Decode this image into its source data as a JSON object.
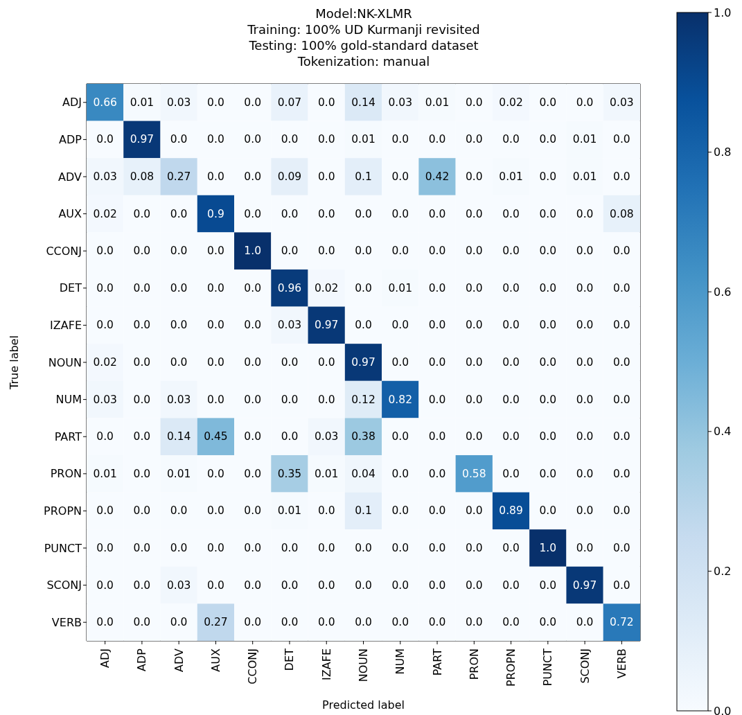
{
  "chart_data": {
    "type": "heatmap",
    "title": "Model:NK-XLMR\nTraining: 100% UD Kurmanji revisited\nTesting: 100% gold-standard dataset\nTokenization: manual",
    "xlabel": "Predicted label",
    "ylabel": "True label",
    "categories": [
      "ADJ",
      "ADP",
      "ADV",
      "AUX",
      "CCONJ",
      "DET",
      "IZAFE",
      "NOUN",
      "NUM",
      "PART",
      "PRON",
      "PROPN",
      "PUNCT",
      "SCONJ",
      "VERB"
    ],
    "y_categories": [
      "ADJ",
      "ADP",
      "ADV",
      "AUX",
      "CCONJ",
      "DET",
      "IZAFE",
      "NOUN",
      "NUM",
      "PART",
      "PRON",
      "PROPN",
      "PUNCT",
      "SCONJ",
      "VERB"
    ],
    "cells": [
      [
        0.66,
        0.01,
        0.03,
        0,
        0,
        0.07,
        0,
        0.14,
        0.03,
        0.01,
        0,
        0.02,
        0,
        0,
        0.03
      ],
      [
        0,
        0.97,
        0,
        0,
        0,
        0,
        0,
        0.01,
        0,
        0,
        0,
        0,
        0,
        0.01,
        0
      ],
      [
        0.03,
        0.08,
        0.27,
        0,
        0,
        0.09,
        0,
        0.1,
        0,
        0.42,
        0,
        0.01,
        0,
        0.01,
        0
      ],
      [
        0.02,
        0,
        0,
        0.9,
        0,
        0,
        0,
        0,
        0,
        0,
        0,
        0,
        0,
        0,
        0.08
      ],
      [
        0,
        0,
        0,
        0,
        1,
        0,
        0,
        0,
        0,
        0,
        0,
        0,
        0,
        0,
        0
      ],
      [
        0,
        0,
        0,
        0,
        0,
        0.96,
        0.02,
        0,
        0.01,
        0,
        0,
        0,
        0,
        0,
        0
      ],
      [
        0,
        0,
        0,
        0,
        0,
        0.03,
        0.97,
        0,
        0,
        0,
        0,
        0,
        0,
        0,
        0
      ],
      [
        0.02,
        0,
        0,
        0,
        0,
        0,
        0,
        0.97,
        0,
        0,
        0,
        0,
        0,
        0,
        0
      ],
      [
        0.03,
        0,
        0.03,
        0,
        0,
        0,
        0,
        0.12,
        0.82,
        0,
        0,
        0,
        0,
        0,
        0
      ],
      [
        0,
        0,
        0.14,
        0.45,
        0,
        0,
        0.03,
        0.38,
        0,
        0,
        0,
        0,
        0,
        0,
        0
      ],
      [
        0.01,
        0,
        0.01,
        0,
        0,
        0.35,
        0.01,
        0.04,
        0,
        0,
        0.58,
        0,
        0,
        0,
        0
      ],
      [
        0,
        0,
        0,
        0,
        0,
        0.01,
        0,
        0.1,
        0,
        0,
        0,
        0.89,
        0,
        0,
        0
      ],
      [
        0,
        0,
        0,
        0,
        0,
        0,
        0,
        0,
        0,
        0,
        0,
        0,
        1,
        0,
        0
      ],
      [
        0,
        0,
        0.03,
        0,
        0,
        0,
        0,
        0,
        0,
        0,
        0,
        0,
        0,
        0.97,
        0
      ],
      [
        0,
        0,
        0,
        0.27,
        0,
        0,
        0,
        0,
        0,
        0,
        0,
        0,
        0,
        0,
        0.72
      ]
    ],
    "cell_labels": [
      [
        "0.66",
        "0.01",
        "0.03",
        "0.0",
        "0.0",
        "0.07",
        "0.0",
        "0.14",
        "0.03",
        "0.01",
        "0.0",
        "0.02",
        "0.0",
        "0.0",
        "0.03"
      ],
      [
        "0.0",
        "0.97",
        "0.0",
        "0.0",
        "0.0",
        "0.0",
        "0.0",
        "0.01",
        "0.0",
        "0.0",
        "0.0",
        "0.0",
        "0.0",
        "0.01",
        "0.0"
      ],
      [
        "0.03",
        "0.08",
        "0.27",
        "0.0",
        "0.0",
        "0.09",
        "0.0",
        "0.1",
        "0.0",
        "0.42",
        "0.0",
        "0.01",
        "0.0",
        "0.01",
        "0.0"
      ],
      [
        "0.02",
        "0.0",
        "0.0",
        "0.9",
        "0.0",
        "0.0",
        "0.0",
        "0.0",
        "0.0",
        "0.0",
        "0.0",
        "0.0",
        "0.0",
        "0.0",
        "0.08"
      ],
      [
        "0.0",
        "0.0",
        "0.0",
        "0.0",
        "1.0",
        "0.0",
        "0.0",
        "0.0",
        "0.0",
        "0.0",
        "0.0",
        "0.0",
        "0.0",
        "0.0",
        "0.0"
      ],
      [
        "0.0",
        "0.0",
        "0.0",
        "0.0",
        "0.0",
        "0.96",
        "0.02",
        "0.0",
        "0.01",
        "0.0",
        "0.0",
        "0.0",
        "0.0",
        "0.0",
        "0.0"
      ],
      [
        "0.0",
        "0.0",
        "0.0",
        "0.0",
        "0.0",
        "0.03",
        "0.97",
        "0.0",
        "0.0",
        "0.0",
        "0.0",
        "0.0",
        "0.0",
        "0.0",
        "0.0"
      ],
      [
        "0.02",
        "0.0",
        "0.0",
        "0.0",
        "0.0",
        "0.0",
        "0.0",
        "0.97",
        "0.0",
        "0.0",
        "0.0",
        "0.0",
        "0.0",
        "0.0",
        "0.0"
      ],
      [
        "0.03",
        "0.0",
        "0.03",
        "0.0",
        "0.0",
        "0.0",
        "0.0",
        "0.12",
        "0.82",
        "0.0",
        "0.0",
        "0.0",
        "0.0",
        "0.0",
        "0.0"
      ],
      [
        "0.0",
        "0.0",
        "0.14",
        "0.45",
        "0.0",
        "0.0",
        "0.03",
        "0.38",
        "0.0",
        "0.0",
        "0.0",
        "0.0",
        "0.0",
        "0.0",
        "0.0"
      ],
      [
        "0.01",
        "0.0",
        "0.01",
        "0.0",
        "0.0",
        "0.35",
        "0.01",
        "0.04",
        "0.0",
        "0.0",
        "0.58",
        "0.0",
        "0.0",
        "0.0",
        "0.0"
      ],
      [
        "0.0",
        "0.0",
        "0.0",
        "0.0",
        "0.0",
        "0.01",
        "0.0",
        "0.1",
        "0.0",
        "0.0",
        "0.0",
        "0.89",
        "0.0",
        "0.0",
        "0.0"
      ],
      [
        "0.0",
        "0.0",
        "0.0",
        "0.0",
        "0.0",
        "0.0",
        "0.0",
        "0.0",
        "0.0",
        "0.0",
        "0.0",
        "0.0",
        "1.0",
        "0.0",
        "0.0"
      ],
      [
        "0.0",
        "0.0",
        "0.03",
        "0.0",
        "0.0",
        "0.0",
        "0.0",
        "0.0",
        "0.0",
        "0.0",
        "0.0",
        "0.0",
        "0.0",
        "0.97",
        "0.0"
      ],
      [
        "0.0",
        "0.0",
        "0.0",
        "0.27",
        "0.0",
        "0.0",
        "0.0",
        "0.0",
        "0.0",
        "0.0",
        "0.0",
        "0.0",
        "0.0",
        "0.0",
        "0.72"
      ]
    ],
    "clim": [
      0,
      1
    ],
    "cticks": [
      {
        "value": 0,
        "label": "0.0"
      },
      {
        "value": 0.2,
        "label": "0.2"
      },
      {
        "value": 0.4,
        "label": "0.4"
      },
      {
        "value": 0.6,
        "label": "0.6"
      },
      {
        "value": 0.8,
        "label": "0.8"
      },
      {
        "value": 1,
        "label": "1.0"
      }
    ]
  }
}
